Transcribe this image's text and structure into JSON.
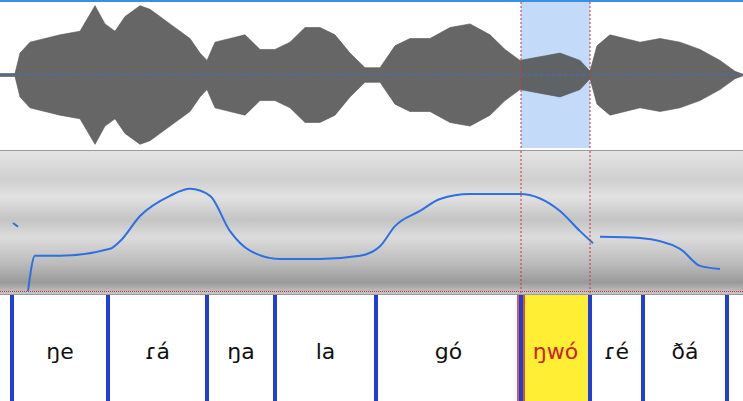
{
  "chart_data": [
    {
      "type": "area",
      "x": [
        0,
        0.03,
        0.04,
        0.06,
        0.09,
        0.12,
        0.16,
        0.19,
        0.21,
        0.23,
        0.25,
        0.28,
        0.3,
        0.34,
        0.38,
        0.4,
        0.414,
        0.43,
        0.46,
        0.49,
        0.52,
        0.55,
        0.58,
        0.61,
        0.64,
        0.67,
        0.7,
        0.73,
        0.76,
        0.79,
        0.82,
        0.86,
        0.9,
        0.94,
        0.98,
        1.01,
        1.04,
        1.08,
        1.12,
        1.16,
        1.18,
        1.194,
        1.22,
        1.25,
        1.28,
        1.32,
        1.36,
        1.4,
        1.44,
        1.47,
        1.486
      ],
      "values": [
        0.02,
        0.02,
        0.3,
        0.45,
        0.5,
        0.55,
        0.6,
        0.95,
        0.7,
        0.6,
        0.8,
        0.95,
        0.9,
        0.7,
        0.5,
        0.3,
        0.2,
        0.45,
        0.5,
        0.55,
        0.35,
        0.35,
        0.45,
        0.65,
        0.65,
        0.55,
        0.3,
        0.1,
        0.1,
        0.4,
        0.5,
        0.5,
        0.65,
        0.7,
        0.55,
        0.35,
        0.2,
        0.25,
        0.3,
        0.2,
        0.05,
        0.4,
        0.55,
        0.5,
        0.45,
        0.5,
        0.45,
        0.35,
        0.2,
        0.05,
        0.01
      ],
      "color": "#555555",
      "xlim": [
        0,
        1.486
      ],
      "ylim": [
        -1,
        1
      ],
      "tick_labels": false
    },
    {
      "type": "line",
      "x": [
        0.026,
        0.036,
        0.04,
        0.056,
        0.07,
        0.12,
        0.22,
        0.24,
        0.28,
        0.34,
        0.38,
        0.42,
        0.46,
        0.5,
        0.56,
        0.64,
        0.72,
        0.76,
        0.79,
        0.84,
        0.88,
        0.94,
        1.04,
        1.12,
        1.16,
        1.186,
        1.19,
        1.2,
        1.28,
        1.36,
        1.4,
        1.44
      ],
      "values": [
        186,
        180,
        null,
        78,
        134,
        134,
        145,
        157,
        197,
        229,
        240,
        229,
        173,
        142,
        129,
        129,
        134,
        149,
        181,
        205,
        224,
        232,
        232,
        205,
        173,
        154,
        null,
        164,
        162,
        145,
        118,
        113
      ],
      "color": "#2f6fe0",
      "xlim": [
        0,
        1.486
      ],
      "ylim": [
        75,
        300
      ],
      "tick_labels": false
    }
  ],
  "tier": {
    "intervals": [
      {
        "start": 0.024,
        "end": 0.216,
        "label": "ŋe"
      },
      {
        "start": 0.216,
        "end": 0.414,
        "label": "ɾá"
      },
      {
        "start": 0.414,
        "end": 0.55,
        "label": "ŋa"
      },
      {
        "start": 0.55,
        "end": 0.752,
        "label": "la"
      },
      {
        "start": 0.752,
        "end": 1.042,
        "label": "gó"
      },
      {
        "start": 1.042,
        "end": 1.18,
        "label": "ŋwó"
      },
      {
        "start": 1.18,
        "end": 1.286,
        "label": "ɾé"
      },
      {
        "start": 1.286,
        "end": 1.454,
        "label": "ðá"
      }
    ],
    "highlight": 5,
    "highlight_color": "#ffee33",
    "highlight_text_color": "#cc2222",
    "boundary_color": "#1f3fd6"
  }
}
